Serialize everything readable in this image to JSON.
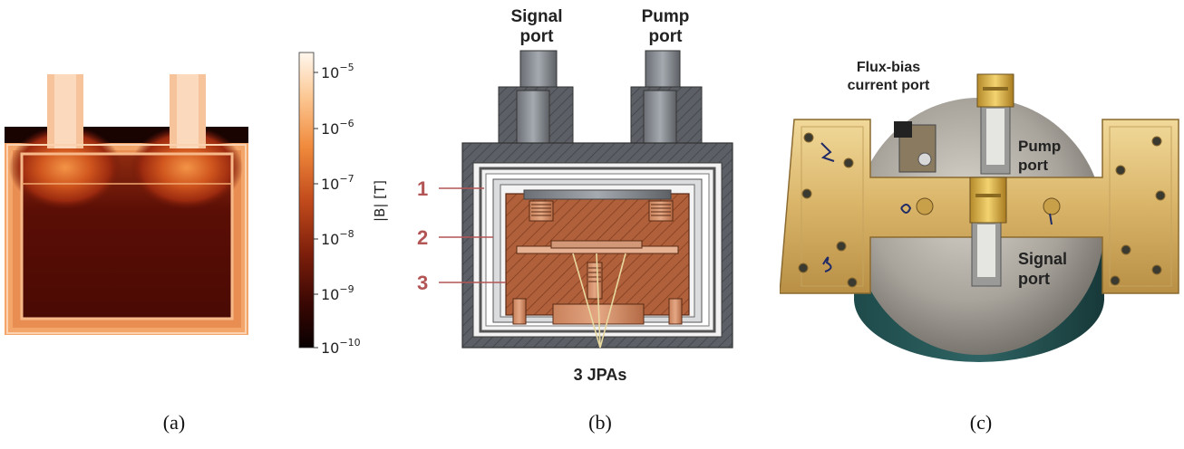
{
  "panel_a": {
    "caption": "(a)",
    "colorbar": {
      "label": "|B| [T]",
      "ticks": [
        {
          "base": "10",
          "exp": "−5"
        },
        {
          "base": "10",
          "exp": "−6"
        },
        {
          "base": "10",
          "exp": "−7"
        },
        {
          "base": "10",
          "exp": "−8"
        },
        {
          "base": "10",
          "exp": "−9"
        },
        {
          "base": "10",
          "exp": "−10"
        }
      ],
      "colors": [
        "#fff6ec",
        "#fdb36b",
        "#e0702a",
        "#a83214",
        "#5c0e06",
        "#120202"
      ]
    }
  },
  "panel_b": {
    "caption": "(b)",
    "signal_port_line1": "Signal",
    "signal_port_line2": "port",
    "pump_port_line1": "Pump",
    "pump_port_line2": "port",
    "markers": [
      "1",
      "2",
      "3"
    ],
    "jpa_label": "3 JPAs",
    "marker_color": "#b35555"
  },
  "panel_c": {
    "caption": "(c)",
    "flux_line1": "Flux-bias",
    "flux_line2": "current port",
    "pump_line1": "Pump",
    "pump_line2": "port",
    "signal_line1": "Signal",
    "signal_line2": "port"
  }
}
